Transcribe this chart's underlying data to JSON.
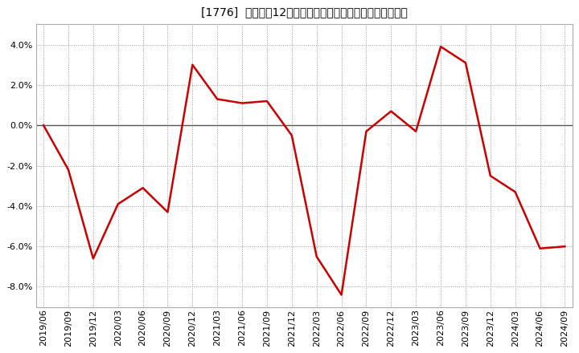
{
  "title": "[1776]  売上高の12か月移動合計の対前年同期増減率の推移",
  "x_labels": [
    "2019/06",
    "2019/09",
    "2019/12",
    "2020/03",
    "2020/06",
    "2020/09",
    "2020/12",
    "2021/03",
    "2021/06",
    "2021/09",
    "2021/12",
    "2022/03",
    "2022/06",
    "2022/09",
    "2022/12",
    "2023/03",
    "2023/06",
    "2023/09",
    "2023/12",
    "2024/03",
    "2024/06",
    "2024/09"
  ],
  "y_values": [
    0.0,
    -2.2,
    -6.6,
    -3.9,
    -3.1,
    -4.3,
    3.0,
    1.3,
    1.1,
    1.2,
    -0.5,
    -6.5,
    -8.4,
    -0.3,
    0.7,
    -0.3,
    3.9,
    3.1,
    -2.5,
    -3.3,
    -6.1,
    -6.0
  ],
  "line_color": "#cc0000",
  "background_color": "#ffffff",
  "plot_bg_color": "#ffffff",
  "grid_color": "#999999",
  "zero_line_color": "#555555",
  "ylim": [
    -9.0,
    5.0
  ],
  "yticks": [
    -8.0,
    -6.0,
    -4.0,
    -2.0,
    0.0,
    2.0,
    4.0
  ],
  "title_fontsize": 11,
  "axis_fontsize": 8,
  "line_width": 1.8,
  "figsize": [
    7.2,
    4.4
  ],
  "dpi": 100
}
